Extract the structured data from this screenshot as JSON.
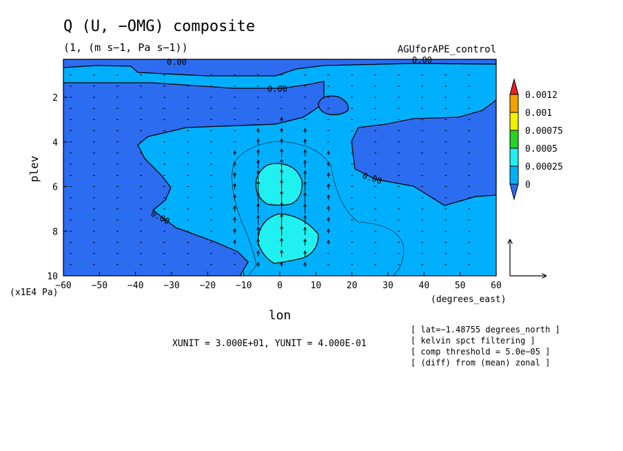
{
  "chart_data": {
    "type": "heatmap",
    "title": "Q (U, −OMG) composite",
    "subtitle": "(1, (m s−1, Pa s−1))",
    "experiment": "AGUforAPE_control",
    "xlabel": "lon",
    "ylabel": "plev",
    "x_units": "(degrees_east)",
    "y_units": "(x1E4 Pa)",
    "xlim": [
      -60,
      60
    ],
    "ylim": [
      10,
      0.3
    ],
    "x_ticks": [
      "−60",
      "−50",
      "−40",
      "−30",
      "−20",
      "−10",
      "0",
      "10",
      "20",
      "30",
      "40",
      "50",
      "60"
    ],
    "y_ticks": [
      "2",
      "4",
      "6",
      "8",
      "10"
    ],
    "colorbar": {
      "levels": [
        "0.0012",
        "0.001",
        "0.00075",
        "0.0005",
        "0.00025",
        "0"
      ],
      "colors": [
        "#e8201c",
        "#f5a000",
        "#f0f000",
        "#28d028",
        "#20f0f0",
        "#00b0ff",
        "#2c6cf0"
      ]
    },
    "contour_labels": [
      "0.00",
      "0.00",
      "0.00",
      "0.00",
      "0.00"
    ],
    "vector_units": "XUNIT = 3.000E+01, YUNIT = 4.000E-01",
    "notes": [
      "[ lat=−1.48755 degrees_north ]",
      "[ kelvin spct filtering ]",
      "[ comp threshold = 5.0e−05 ]",
      "[ (diff) from (mean) zonal ]"
    ],
    "fields": {
      "low": {
        "value": "< 0",
        "color": "#2c6cf0"
      },
      "mid": {
        "value": "0 – 0.00025",
        "color": "#00b0ff"
      },
      "high": {
        "value": "0.00025 – 0.0005",
        "color": "#20f0f0"
      }
    }
  }
}
